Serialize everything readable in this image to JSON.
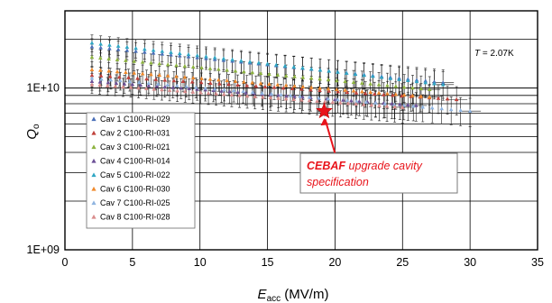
{
  "chart_data": {
    "type": "scatter",
    "title": "",
    "x_axis": {
      "label_main": "E",
      "label_sub": "acc",
      "label_unit": " (MV/m)",
      "range": [
        0,
        35
      ],
      "ticks": [
        "0",
        "5",
        "10",
        "15",
        "20",
        "25",
        "30",
        "35"
      ]
    },
    "y_axis": {
      "label_main": "Q",
      "label_sub": "o",
      "scale": "log",
      "range": [
        1000000000.0,
        30000000000.0
      ],
      "ticks": [
        "1E+09",
        "1E+10"
      ]
    },
    "grid": true,
    "annotation_temperature": {
      "prefix": "T",
      "value": " = 2.07K"
    },
    "legend": {
      "position": "lower-left",
      "entries": [
        "Cav 1  C100-RI-029",
        "Cav 2  C100-RI-031",
        "Cav 3  C100-RI-021",
        "Cav 4  C100-RI-014",
        "Cav 5  C100-RI-022",
        "Cav 6  C100-RI-030",
        "Cav 7  C100-RI-025",
        "Cav 8  C100-RI-028"
      ]
    },
    "series": [
      {
        "name": "Cav 1  C100-RI-029",
        "color": "#4a6fb8",
        "x_range": [
          2,
          28
        ],
        "q_start": 18000000000.0,
        "q_end": 10800000000.0
      },
      {
        "name": "Cav 2  C100-RI-031",
        "color": "#c0403a",
        "x_range": [
          2,
          29
        ],
        "q_start": 12000000000.0,
        "q_end": 8500000000.0
      },
      {
        "name": "Cav 3  C100-RI-021",
        "color": "#8db33f",
        "x_range": [
          2,
          27
        ],
        "q_start": 15500000000.0,
        "q_end": 9800000000.0
      },
      {
        "name": "Cav 4  C100-RI-014",
        "color": "#6b4f96",
        "x_range": [
          2,
          26
        ],
        "q_start": 11000000000.0,
        "q_end": 7800000000.0
      },
      {
        "name": "Cav 5  C100-RI-022",
        "color": "#2fa6c4",
        "x_range": [
          2,
          28
        ],
        "q_start": 19000000000.0,
        "q_end": 10500000000.0
      },
      {
        "name": "Cav 6  C100-RI-030",
        "color": "#f08a2c",
        "x_range": [
          2,
          27
        ],
        "q_start": 13000000000.0,
        "q_end": 8800000000.0
      },
      {
        "name": "Cav 7  C100-RI-025",
        "color": "#8fb4e0",
        "x_range": [
          2,
          30
        ],
        "q_start": 11500000000.0,
        "q_end": 7200000000.0
      },
      {
        "name": "Cav 8  C100-RI-028",
        "color": "#d98c8c",
        "x_range": [
          2,
          25
        ],
        "q_start": 10500000000.0,
        "q_end": 7600000000.0
      }
    ],
    "specification": {
      "label_bold": "CEBAF",
      "label_line1_rest": " upgrade cavity",
      "label_line2": "specification",
      "x": 19.2,
      "y": 7200000000.0,
      "color": "#e8141b"
    }
  }
}
